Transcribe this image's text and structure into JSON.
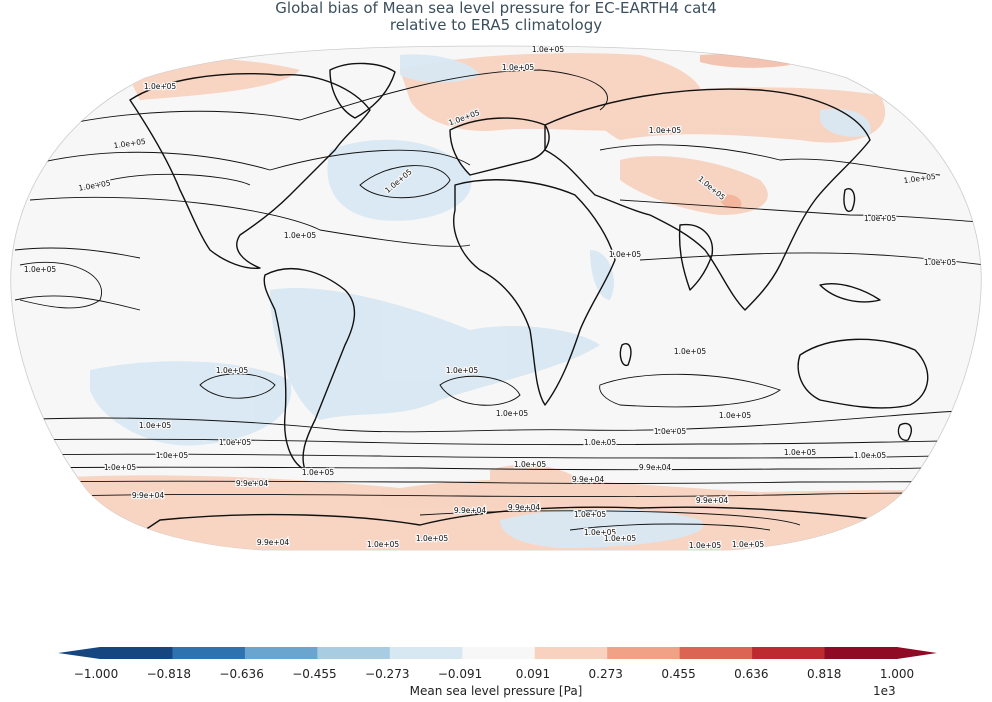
{
  "title_line1": "Global bias of Mean sea level pressure for EC-EARTH4 cat4",
  "title_line2": "relative to ERA5 climatology",
  "colorbar": {
    "label": "Mean sea level pressure [Pa]",
    "multiplier": "1e3",
    "ticks": [
      "−1.000",
      "−0.818",
      "−0.636",
      "−0.455",
      "−0.273",
      "−0.091",
      "0.091",
      "0.273",
      "0.455",
      "0.636",
      "0.818",
      "1.000"
    ],
    "colors": [
      "#15467f",
      "#2f72b0",
      "#6aa5cf",
      "#a8cde3",
      "#d8e8f2",
      "#f7f7f7",
      "#f8d2bf",
      "#f1a286",
      "#dc6452",
      "#bd2b30",
      "#8e0a25"
    ]
  },
  "contour_labels": [
    "1.0e+05",
    "9.9e+04"
  ],
  "chart_data": {
    "type": "heatmap",
    "title": "Global bias of Mean sea level pressure for EC-EARTH4 cat4 relative to ERA5 climatology",
    "colorbar_range": [
      -1.0,
      1.0
    ],
    "colorbar_scale": "1e3",
    "units": "Pa",
    "projection": "Robinson",
    "contour_levels_shown": [
      "1.0e+05",
      "9.9e+04"
    ],
    "bias_regions": [
      {
        "region": "Arctic / N Eurasia",
        "sign": "positive",
        "approx_value": 0.2
      },
      {
        "region": "Central Asia",
        "sign": "positive",
        "approx_value": 0.2
      },
      {
        "region": "Southern Ocean ~60S",
        "sign": "positive",
        "approx_value": 0.2
      },
      {
        "region": "N Atlantic subtropical",
        "sign": "negative",
        "approx_value": -0.2
      },
      {
        "region": "S Atlantic / S America",
        "sign": "negative",
        "approx_value": -0.2
      },
      {
        "region": "SE Pacific subtropical",
        "sign": "negative",
        "approx_value": -0.2
      },
      {
        "region": "Antarctic interior",
        "sign": "negative",
        "approx_value": -0.2
      }
    ]
  }
}
